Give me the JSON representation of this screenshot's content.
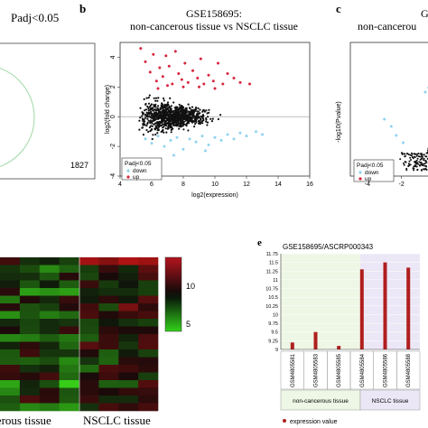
{
  "panel_a": {
    "title": "Padj<0.05",
    "count": "1827"
  },
  "panel_b": {
    "letter": "b",
    "title_line1": "GSE158695:",
    "title_line2": "non-cancerous tissue vs NSCLC tissue",
    "xlabel": "log2(expression)",
    "ylabel": "log2(fold change)",
    "legend_title": "Padj<0.05",
    "legend_down": "down",
    "legend_up": "up",
    "colors": {
      "up": "#d7263d",
      "down": "#8fd3f0",
      "ns": "#111111"
    }
  },
  "panel_c": {
    "letter": "c",
    "title_line1": "G",
    "title_line2": "non-cancerou",
    "ylabel": "-log10(Pvalue)",
    "legend_title": "Padj<0.05",
    "legend_down": "down",
    "legend_up": "up"
  },
  "panel_d": {
    "group1_label": "cancerous tissue",
    "group2_label": "NSCLC tissue",
    "colorbar_ticks": [
      "10",
      "5"
    ]
  },
  "panel_e": {
    "letter": "e",
    "title": "GSE158695/ASCRP000343",
    "group1_label": "non-cancerous tissue",
    "group2_label": "NSCLC tissue",
    "legend": "expression value",
    "bar_color": "#b01e1e",
    "group1_bg": "#eef7e6",
    "group2_bg": "#ece7f6"
  },
  "chart_data": [
    {
      "type": "scatter",
      "panel": "b",
      "title": "GSE158695: non-cancerous tissue vs NSCLC tissue",
      "xlabel": "log2(expression)",
      "ylabel": "log2(fold change)",
      "xlim": [
        4,
        16
      ],
      "ylim": [
        -4,
        5
      ],
      "x_ticks": [
        4,
        6,
        8,
        10,
        12,
        14,
        16
      ],
      "y_ticks": [
        -4,
        -2,
        0,
        2,
        4
      ],
      "series": [
        {
          "name": "up",
          "color": "#d7263d",
          "points": [
            [
              5.3,
              4.6
            ],
            [
              5.6,
              3.7
            ],
            [
              5.9,
              3.0
            ],
            [
              6.1,
              4.2
            ],
            [
              6.3,
              2.4
            ],
            [
              6.5,
              3.3
            ],
            [
              6.7,
              2.7
            ],
            [
              6.9,
              4.1
            ],
            [
              7.1,
              3.4
            ],
            [
              7.3,
              2.2
            ],
            [
              7.5,
              4.4
            ],
            [
              7.7,
              2.9
            ],
            [
              7.9,
              2.5
            ],
            [
              8.1,
              3.6
            ],
            [
              8.3,
              2.3
            ],
            [
              8.6,
              3.1
            ],
            [
              8.9,
              2.6
            ],
            [
              9.1,
              3.9
            ],
            [
              9.3,
              2.2
            ],
            [
              9.6,
              2.8
            ],
            [
              9.9,
              2.4
            ],
            [
              10.2,
              3.6
            ],
            [
              10.5,
              2.2
            ],
            [
              10.8,
              2.9
            ],
            [
              11.2,
              2.6
            ],
            [
              11.6,
              2.3
            ],
            [
              12.2,
              2.2
            ],
            [
              6.4,
              1.9
            ],
            [
              7.0,
              2.1
            ],
            [
              8.0,
              2.0
            ],
            [
              9.0,
              2.0
            ],
            [
              10.0,
              1.9
            ]
          ]
        },
        {
          "name": "down",
          "color": "#8fd3f0",
          "points": [
            [
              5.6,
              -1.5
            ],
            [
              6.0,
              -1.8
            ],
            [
              6.4,
              -1.3
            ],
            [
              6.8,
              -2.0
            ],
            [
              7.2,
              -1.6
            ],
            [
              7.6,
              -1.4
            ],
            [
              8.0,
              -2.2
            ],
            [
              8.4,
              -1.5
            ],
            [
              8.8,
              -1.7
            ],
            [
              9.2,
              -1.3
            ],
            [
              9.6,
              -1.9
            ],
            [
              10.0,
              -1.4
            ],
            [
              10.4,
              -1.6
            ],
            [
              10.8,
              -1.2
            ],
            [
              11.2,
              -1.5
            ],
            [
              11.6,
              -1.1
            ],
            [
              12.0,
              -1.3
            ],
            [
              12.6,
              -1.0
            ],
            [
              13.0,
              -1.2
            ],
            [
              7.4,
              -2.6
            ],
            [
              9.4,
              -2.3
            ]
          ]
        }
      ]
    },
    {
      "type": "scatter",
      "panel": "c",
      "ylabel": "-log10(Pvalue)",
      "xlim": [
        -5,
        0.3
      ],
      "x_ticks": [
        -4,
        -2
      ],
      "series": [
        {
          "name": "down",
          "color": "#8fd3f0"
        },
        {
          "name": "up",
          "color": "#d7263d"
        }
      ]
    },
    {
      "type": "bar",
      "panel": "e",
      "title": "GSE158695/ASCRP000343",
      "categories": [
        "GSM4805581",
        "GSM4805583",
        "GSM4805585",
        "GSM4805584",
        "GSM4805586",
        "GSM4805588"
      ],
      "groups": [
        "non-cancerous tissue",
        "non-cancerous tissue",
        "non-cancerous tissue",
        "NSCLC tissue",
        "NSCLC tissue",
        "NSCLC tissue"
      ],
      "values": [
        9.2,
        9.5,
        9.1,
        11.3,
        11.5,
        11.35
      ],
      "ylim": [
        9,
        11.75
      ],
      "y_ticks": [
        9,
        9.25,
        9.5,
        9.75,
        10,
        10.25,
        10.5,
        10.75,
        11,
        11.25,
        11.5,
        11.75
      ],
      "legend": "expression value"
    },
    {
      "type": "heatmap",
      "panel": "d",
      "columns_groups": [
        "cancerous tissue",
        "NSCLC tissue"
      ],
      "colorbar_ticks": [
        10,
        5
      ]
    }
  ]
}
